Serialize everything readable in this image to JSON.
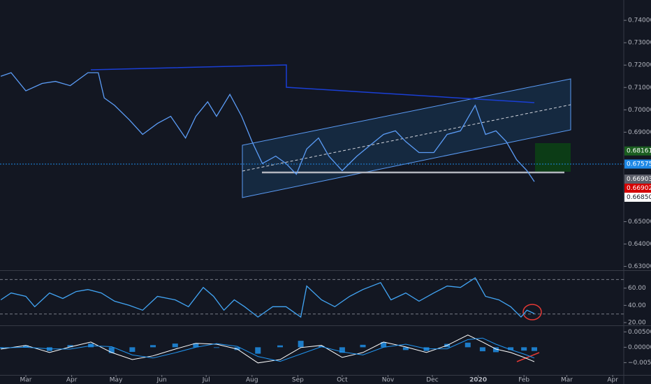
{
  "chart_data": [
    {
      "type": "line",
      "color": "#5b9cf6",
      "x": [
        -17,
        -10,
        0,
        11,
        20,
        30,
        42,
        49,
        53,
        60,
        70,
        79,
        89,
        98,
        108,
        115,
        123,
        129,
        138,
        146,
        153,
        160,
        169,
        176,
        183,
        190,
        198,
        205,
        214,
        224,
        233,
        242,
        250,
        257,
        266,
        276,
        285,
        294,
        304,
        311,
        318,
        325,
        332,
        339,
        344
      ],
      "values": [
        0.715,
        0.7166,
        0.7085,
        0.7118,
        0.7127,
        0.7108,
        0.7166,
        0.7166,
        0.7053,
        0.702,
        0.6955,
        0.689,
        0.6939,
        0.6971,
        0.6874,
        0.6971,
        0.7036,
        0.6971,
        0.7069,
        0.6971,
        0.6858,
        0.676,
        0.6793,
        0.676,
        0.6712,
        0.6825,
        0.6874,
        0.6793,
        0.6728,
        0.6793,
        0.6842,
        0.689,
        0.6906,
        0.6858,
        0.6809,
        0.6809,
        0.689,
        0.6906,
        0.702,
        0.689,
        0.6906,
        0.6858,
        0.6777,
        0.6728,
        0.6679
      ],
      "xlim": [
        -17.5,
        404.5
      ],
      "ylim": [
        0.6283,
        0.7491
      ],
      "yticks": [
        {
          "value": 0.74,
          "label": "0.74000"
        },
        {
          "value": 0.73,
          "label": "0.73000"
        },
        {
          "value": 0.72,
          "label": "0.72000"
        },
        {
          "value": 0.71,
          "label": "0.71000"
        },
        {
          "value": 0.7,
          "label": "0.70000"
        },
        {
          "value": 0.69,
          "label": "0.69000"
        },
        {
          "value": 0.65,
          "label": "0.65000"
        },
        {
          "value": 0.64,
          "label": "0.64000"
        },
        {
          "value": 0.63,
          "label": "0.63000"
        }
      ],
      "price_labels": [
        {
          "value": 0.68161,
          "label": "0.68161",
          "color": "#1b5e20",
          "text_color": "#ffffff"
        },
        {
          "value": 0.67575,
          "label": "0.67575",
          "color": "#1e88e5",
          "text_color": "#ffffff"
        },
        {
          "value": 0.66903,
          "label": "0.66903",
          "color": "#5d606b",
          "text_color": "#ffffff"
        },
        {
          "value": 0.66902,
          "label": "0.66902",
          "color": "#d50000",
          "text_color": "#ffffff"
        },
        {
          "value": 0.6685,
          "label": "0.66850",
          "color": "#ffffff",
          "text_color": "#131722"
        }
      ]
    },
    {
      "type": "line",
      "color": "#42a5f5",
      "x": [
        -17,
        -10,
        0,
        6,
        16,
        25,
        34,
        42,
        51,
        60,
        70,
        79,
        89,
        101,
        110,
        120,
        127,
        134,
        141,
        148,
        157,
        167,
        176,
        186,
        190,
        200,
        209,
        219,
        228,
        240,
        247,
        257,
        266,
        276,
        285,
        294,
        304,
        311,
        320,
        328,
        335,
        339,
        344
      ],
      "values": [
        46.4,
        54.4,
        50.4,
        38.4,
        54.4,
        48,
        56,
        58.4,
        54.4,
        44.8,
        40,
        34.4,
        50.4,
        46.4,
        38.4,
        60.8,
        50.4,
        34.4,
        46.4,
        38.4,
        26.4,
        38.4,
        38.4,
        26.4,
        62.4,
        46.4,
        38.4,
        50.4,
        58.4,
        66.4,
        46.4,
        54.4,
        44.8,
        54.4,
        62.4,
        60.8,
        72,
        50.4,
        46.4,
        38.4,
        26.4,
        34.4,
        30.4
      ],
      "xlim": [
        -17.5,
        404.5
      ],
      "ylim": [
        17.6,
        80
      ],
      "yticks": [
        {
          "value": 60,
          "label": "60.00"
        },
        {
          "value": 40,
          "label": "40.00"
        },
        {
          "value": 20,
          "label": "20.00"
        }
      ],
      "levels": [
        70,
        30
      ]
    },
    {
      "type": "macd",
      "x": [
        -17,
        0,
        16,
        30,
        44,
        58,
        72,
        86,
        101,
        115,
        129,
        143,
        157,
        172,
        186,
        200,
        214,
        228,
        242,
        257,
        271,
        285,
        299,
        309,
        318,
        328,
        337,
        344
      ],
      "series": [
        {
          "kind": "bar",
          "color": "#2196f3",
          "values": [
            -0.0004,
            0.0006,
            -0.0012,
            0.0007,
            0.0012,
            -0.0019,
            -0.0015,
            0.0007,
            0.0012,
            0.0013,
            -0.0002,
            -0.0009,
            -0.0021,
            0.0006,
            0.0021,
            0.0004,
            -0.0018,
            0.0008,
            0.0017,
            -0.0009,
            -0.0012,
            0.0011,
            0.0015,
            -0.0013,
            -0.0016,
            -0.0009,
            -0.0011,
            -0.0012
          ]
        },
        {
          "kind": "line",
          "color": "#ffffff",
          "values": [
            -0.0006,
            0.0006,
            -0.0017,
            0.0001,
            0.0017,
            -0.0017,
            -0.004,
            -0.0028,
            -0.0006,
            0.0013,
            0.001,
            -0.0006,
            -0.0051,
            -0.004,
            -0.0001,
            0.0006,
            -0.0033,
            -0.0017,
            0.0017,
            0.0001,
            -0.0017,
            0.0006,
            0.004,
            0.0017,
            -0.0006,
            -0.0017,
            -0.0033,
            -0.0047
          ]
        },
        {
          "kind": "line",
          "color": "#2196f3",
          "values": [
            -0.0002,
            0,
            -0.0005,
            -0.0006,
            0.0005,
            0.0002,
            -0.0025,
            -0.0035,
            -0.0018,
            0,
            0.0012,
            0.0003,
            -0.003,
            -0.0046,
            -0.0022,
            0.0002,
            -0.0015,
            -0.0025,
            0,
            0.001,
            -0.0005,
            -0.0005,
            0.0025,
            0.003,
            0.001,
            -0.0008,
            -0.0022,
            -0.0035
          ]
        }
      ],
      "xlim": [
        -17.5,
        404.5
      ],
      "ylim": [
        -0.009,
        0.0069
      ],
      "yticks": [
        {
          "value": 0.005,
          "label": "0.00500"
        },
        {
          "value": 0,
          "label": "0.00000"
        },
        {
          "value": -0.005,
          "label": "−0.00500"
        }
      ],
      "xticks": [
        {
          "value": 0,
          "label": "Mar"
        },
        {
          "value": 31,
          "label": "Apr"
        },
        {
          "value": 61,
          "label": "May"
        },
        {
          "value": 92,
          "label": "Jun"
        },
        {
          "value": 122,
          "label": "Jul"
        },
        {
          "value": 153,
          "label": "Aug"
        },
        {
          "value": 184,
          "label": "Sep"
        },
        {
          "value": 214,
          "label": "Oct"
        },
        {
          "value": 245,
          "label": "Nov"
        },
        {
          "value": 275,
          "label": "Dec"
        },
        {
          "value": 306,
          "label": "2020"
        },
        {
          "value": 337,
          "label": "Feb"
        },
        {
          "value": 366,
          "label": "Mar"
        },
        {
          "value": 397,
          "label": "Apr"
        }
      ]
    }
  ]
}
